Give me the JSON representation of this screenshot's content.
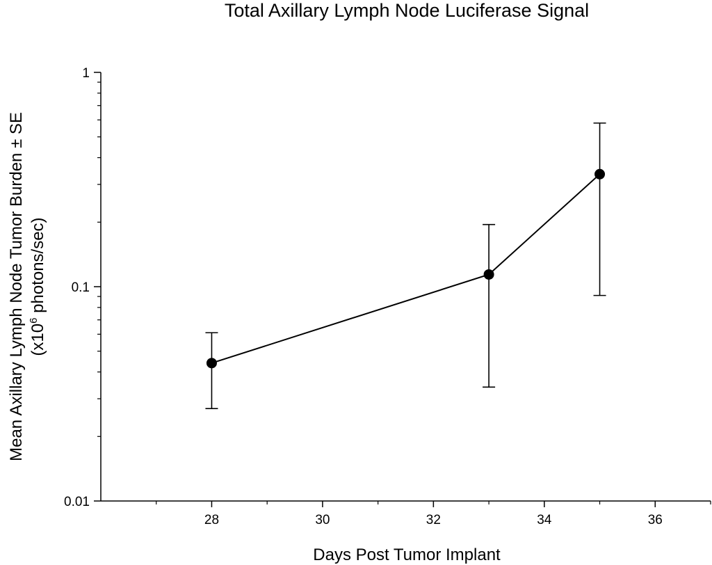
{
  "chart_data": {
    "type": "line",
    "title": "Total Axillary Lymph Node Luciferase Signal",
    "xlabel": "Days Post Tumor Implant",
    "ylabel_line1": "Mean Axillary Lymph Node Tumor Burden ± SE",
    "ylabel_line2_prefix": "(x10",
    "ylabel_line2_exponent": "6",
    "ylabel_line2_suffix": " photons/sec)",
    "y_scale": "log",
    "xlim": [
      26,
      37
    ],
    "ylim": [
      0.01,
      1
    ],
    "x_ticks": [
      28,
      30,
      32,
      34,
      36
    ],
    "x_tick_labels": [
      "28",
      "30",
      "32",
      "34",
      "36"
    ],
    "y_ticks": [
      0.01,
      0.1,
      1
    ],
    "y_tick_labels": [
      "0.01",
      "0.1",
      "1"
    ],
    "grid": false,
    "series": [
      {
        "points": [
          {
            "x": 28,
            "y": 0.044,
            "err_low": 0.027,
            "err_high": 0.061
          },
          {
            "x": 33,
            "y": 0.114,
            "err_low": 0.034,
            "err_high": 0.195
          },
          {
            "x": 35,
            "y": 0.335,
            "err_low": 0.091,
            "err_high": 0.58
          }
        ]
      }
    ],
    "colors": {
      "line": "#000000",
      "marker": "#000000"
    }
  }
}
